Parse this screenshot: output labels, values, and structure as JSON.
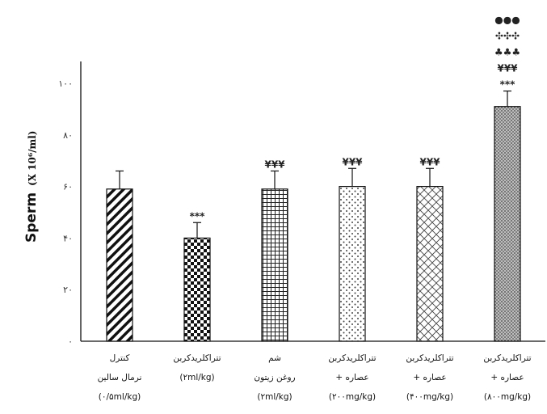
{
  "chart_data": {
    "type": "bar",
    "ylabel": "Sperm",
    "ylabel_unit": "(X 10⁶/ml)",
    "ylim": [
      0,
      100
    ],
    "yticks": [
      "۰",
      "۲۰",
      "۴۰",
      "۶۰",
      "۸۰",
      "۱۰۰"
    ],
    "grid": false,
    "categories": [
      [
        "کنترل",
        "نرمال سالین",
        "(۰/۵ml/kg)"
      ],
      [
        "تتراکلریدکربن",
        "(۲ml/kg)"
      ],
      [
        "شم",
        "روغن زیتون",
        "(۲ml/kg)"
      ],
      [
        "تتراکلریدکربن",
        "+ عصاره",
        "(۲۰۰mg/kg)"
      ],
      [
        "تتراکلریدکربن",
        "+ عصاره",
        "(۴۰۰mg/kg)"
      ],
      [
        "تتراکلریدکربن",
        "+ عصاره",
        "(۸۰۰mg/kg)"
      ]
    ],
    "values": [
      59,
      40,
      59,
      60,
      60,
      91
    ],
    "errors": [
      7,
      6,
      7,
      7,
      7,
      6
    ],
    "patterns": [
      "diagonal-stripes",
      "checkerboard",
      "grid",
      "dots",
      "diamond-lattice",
      "dense-dots"
    ],
    "significance": [
      [],
      [
        "***"
      ],
      [
        "¥¥¥"
      ],
      [
        "¥¥¥"
      ],
      [
        "¥¥¥"
      ],
      [
        "●●●",
        "✣✣✣",
        "♣♣♣",
        "¥¥¥",
        "***"
      ]
    ]
  }
}
